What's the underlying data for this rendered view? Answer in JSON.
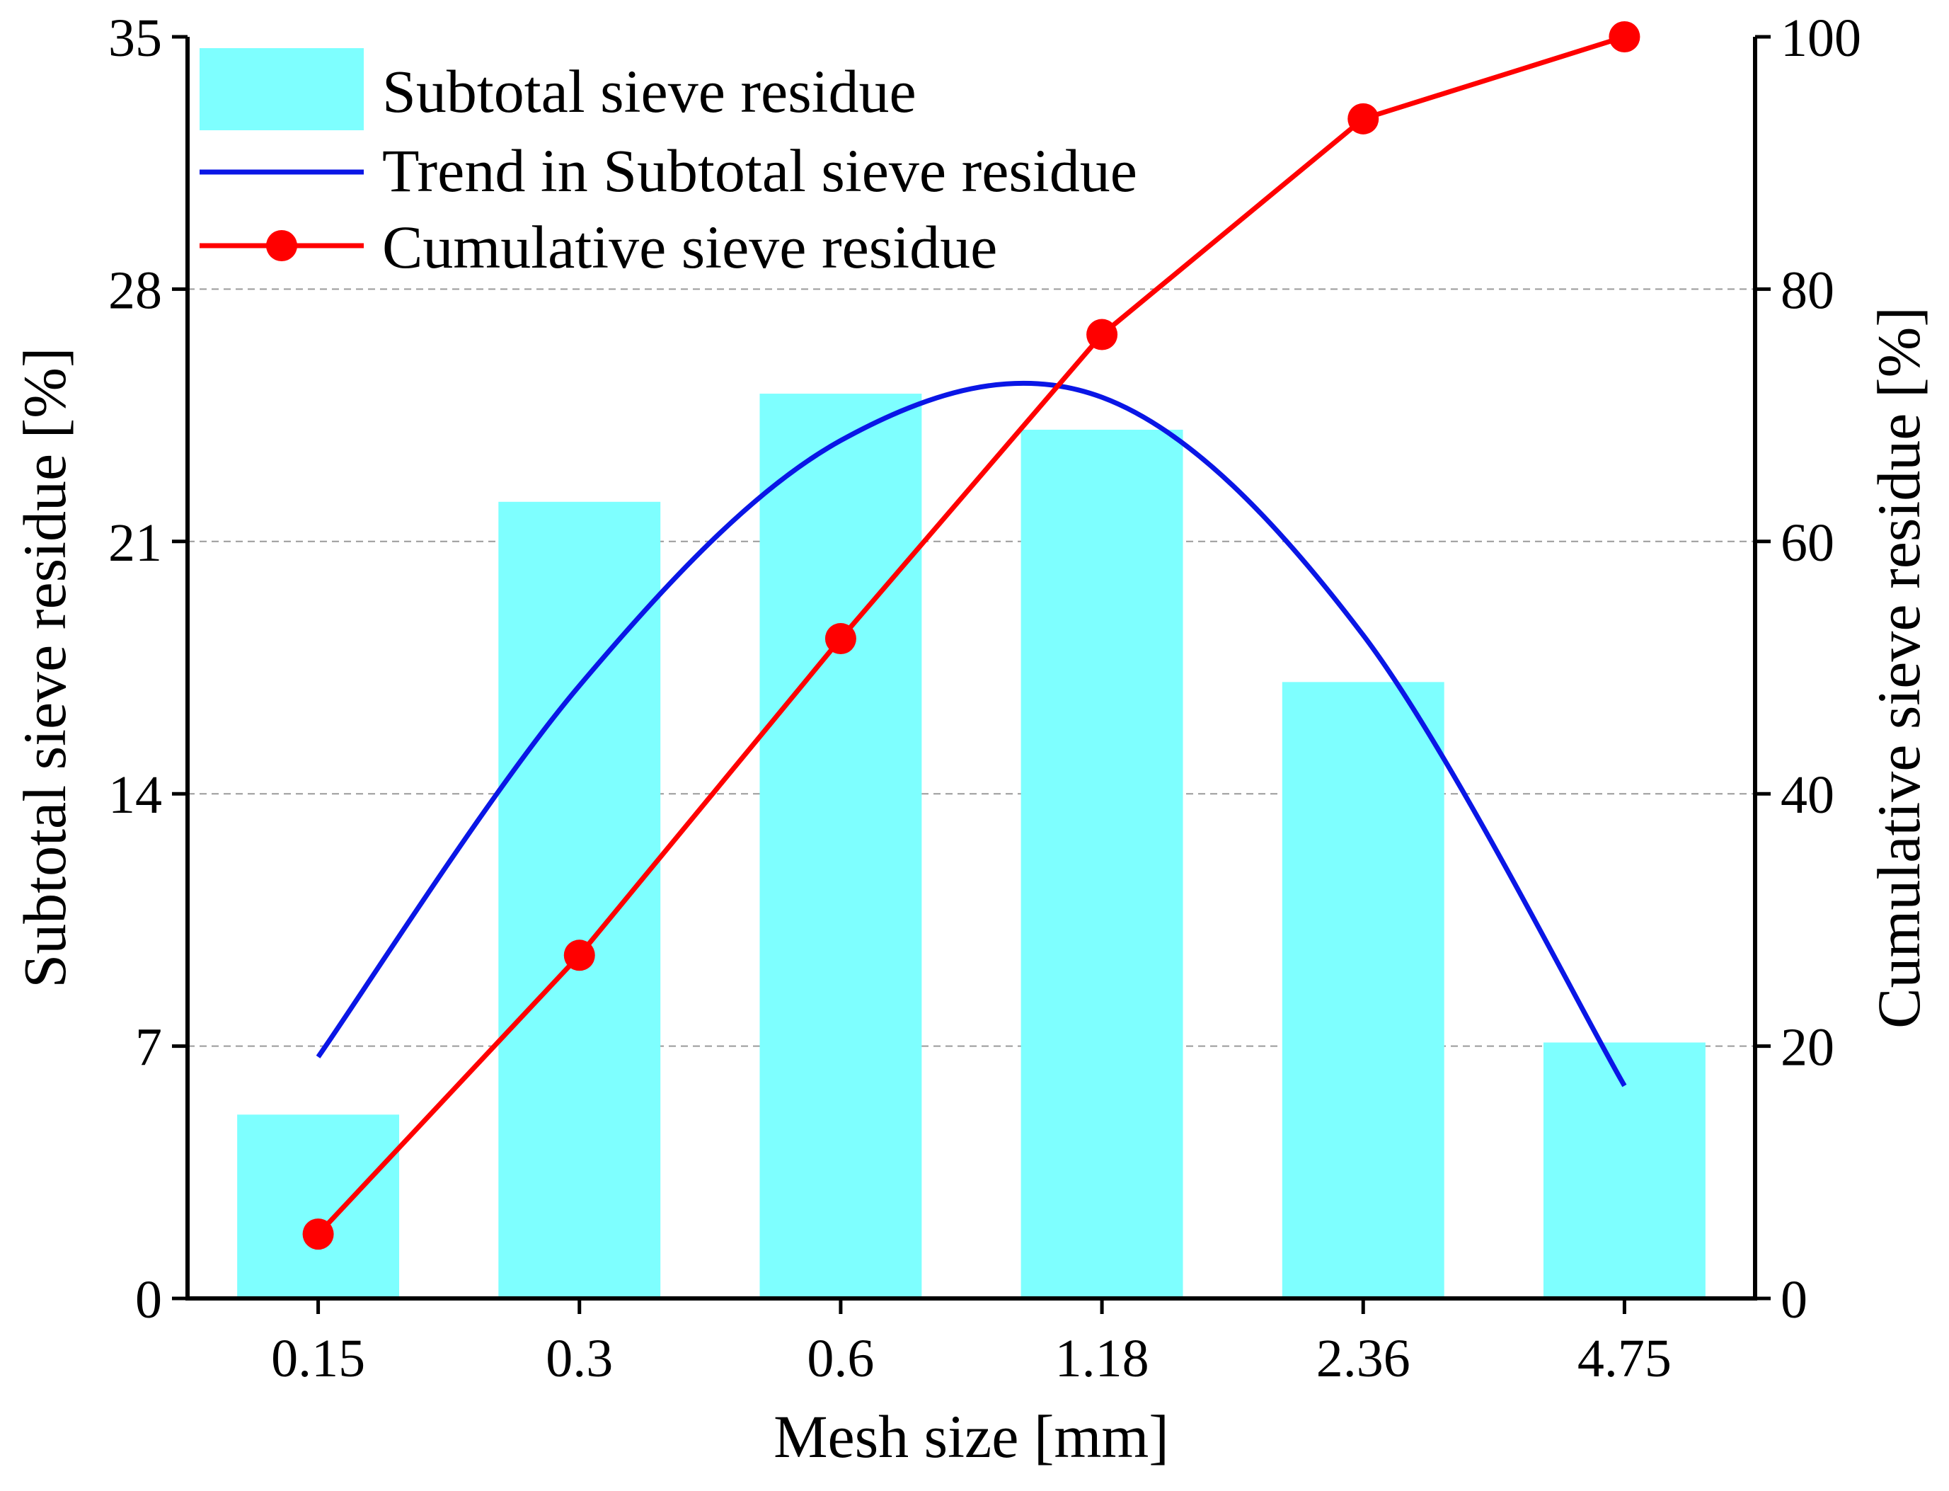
{
  "chart_data": {
    "type": "bar",
    "xlabel": "Mesh size [mm]",
    "ylabel_left": "Subtotal sieve residue [%]",
    "ylabel_right": "Cumulative sieve residue [%]",
    "categories": [
      "0.15",
      "0.3",
      "0.6",
      "1.18",
      "2.36",
      "4.75"
    ],
    "ylim_left": [
      0,
      35
    ],
    "yticks_left": [
      "0",
      "7",
      "14",
      "21",
      "28",
      "35"
    ],
    "ylim_right": [
      0,
      100
    ],
    "yticks_right": [
      "0",
      "20",
      "40",
      "60",
      "80",
      "100"
    ],
    "grid": "horizontal dashed",
    "legend_position": "top-left",
    "series": [
      {
        "name": "Subtotal sieve residue",
        "kind": "bar",
        "axis": "left",
        "color": "#7effff",
        "values": [
          5.1,
          22.1,
          25.1,
          24.1,
          17.1,
          7.1
        ]
      },
      {
        "name": "Trend in Subtotal sieve residue",
        "kind": "trend",
        "axis": "left",
        "color": "#0a16e6",
        "values": [
          6.7,
          17.0,
          23.8,
          25.0,
          18.4,
          5.9
        ]
      },
      {
        "name": "Cumulative sieve residue",
        "kind": "line-marker",
        "axis": "right",
        "color": "#ff0000",
        "values": [
          5.1,
          27.2,
          52.3,
          76.4,
          93.5,
          100
        ]
      }
    ]
  }
}
